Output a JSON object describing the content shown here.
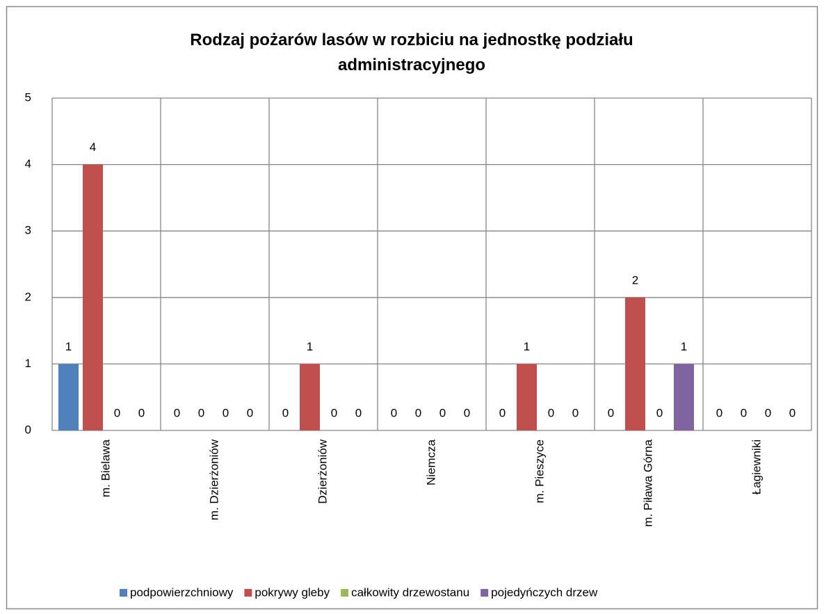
{
  "chart_data": {
    "type": "bar",
    "title": "Rodzaj pożarów lasów w rozbiciu na jednostkę podziału administracyjnego",
    "categories": [
      "m. Bielawa",
      "m. Dzierżoniów",
      "Dzierżoniów",
      "Niemcza",
      "m. Pieszyce",
      "m. Piława Górna",
      "Łagiewniki"
    ],
    "series": [
      {
        "name": "podpowierzchniowy",
        "color": "#4f81bd",
        "values": [
          1,
          0,
          0,
          0,
          0,
          0,
          0
        ]
      },
      {
        "name": "pokrywy gleby",
        "color": "#c0504d",
        "values": [
          4,
          0,
          1,
          0,
          1,
          2,
          0
        ]
      },
      {
        "name": "całkowity drzewostanu",
        "color": "#9bbb59",
        "values": [
          0,
          0,
          0,
          0,
          0,
          0,
          0
        ]
      },
      {
        "name": "pojedyńczych drzew",
        "color": "#8064a2",
        "values": [
          0,
          0,
          0,
          0,
          0,
          1,
          0
        ]
      }
    ],
    "ylim": [
      0,
      5
    ],
    "yticks": [
      0,
      1,
      2,
      3,
      4,
      5
    ],
    "grid": true,
    "legend": "bottom"
  }
}
